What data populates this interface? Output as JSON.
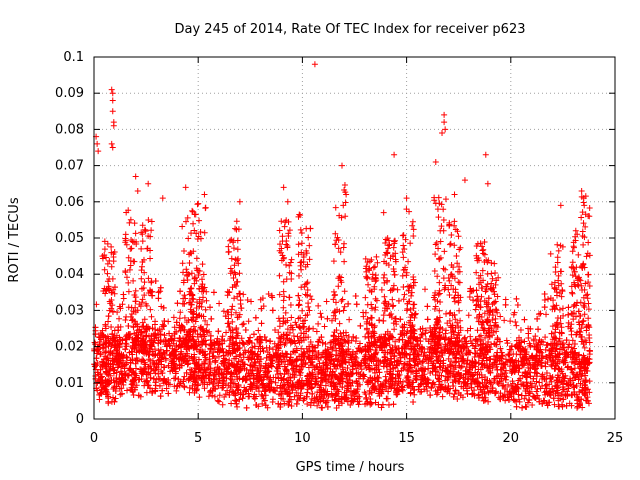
{
  "chart_data": {
    "type": "scatter",
    "title": "Day 245 of 2014, Rate Of TEC Index for receiver p623",
    "xlabel": "GPS time / hours",
    "ylabel": "ROTI / TECUs",
    "xlim": [
      0,
      25
    ],
    "ylim": [
      0,
      0.1
    ],
    "xticks": [
      0,
      5,
      10,
      15,
      20,
      25
    ],
    "yticks": [
      0,
      0.01,
      0.02,
      0.03,
      0.04,
      0.05,
      0.06,
      0.07,
      0.08,
      0.09,
      0.1
    ],
    "xtick_labels": [
      "0",
      "5",
      "10",
      "15",
      "20",
      "25"
    ],
    "ytick_labels": [
      "0",
      "0.01",
      "0.02",
      "0.03",
      "0.04",
      "0.05",
      "0.06",
      "0.07",
      "0.08",
      "0.09",
      "0.1"
    ],
    "grid": true,
    "marker": "+",
    "color": "#ff0000",
    "series": [
      {
        "name": "ROTI",
        "x_range": [
          0,
          23.8
        ],
        "baseline_profile": [
          [
            0,
            0.014
          ],
          [
            2,
            0.016
          ],
          [
            4.5,
            0.017
          ],
          [
            7,
            0.013
          ],
          [
            9,
            0.013
          ],
          [
            12,
            0.012
          ],
          [
            14,
            0.014
          ],
          [
            16,
            0.016
          ],
          [
            18,
            0.015
          ],
          [
            20,
            0.012
          ],
          [
            22,
            0.013
          ],
          [
            23.8,
            0.012
          ]
        ],
        "notable_points": [
          [
            0.1,
            0.078
          ],
          [
            0.15,
            0.076
          ],
          [
            0.2,
            0.074
          ],
          [
            0.85,
            0.091
          ],
          [
            0.9,
            0.09
          ],
          [
            0.9,
            0.088
          ],
          [
            0.9,
            0.085
          ],
          [
            0.95,
            0.082
          ],
          [
            0.95,
            0.081
          ],
          [
            0.85,
            0.076
          ],
          [
            0.9,
            0.075
          ],
          [
            10.6,
            0.098
          ],
          [
            11.9,
            0.07
          ],
          [
            14.4,
            0.073
          ],
          [
            16.4,
            0.071
          ],
          [
            16.8,
            0.084
          ],
          [
            16.8,
            0.082
          ],
          [
            16.85,
            0.08
          ],
          [
            16.7,
            0.079
          ],
          [
            18.8,
            0.073
          ],
          [
            18.9,
            0.065
          ],
          [
            17.8,
            0.066
          ],
          [
            17.3,
            0.062
          ],
          [
            2.0,
            0.067
          ],
          [
            2.1,
            0.063
          ],
          [
            2.6,
            0.065
          ],
          [
            4.4,
            0.064
          ],
          [
            5.3,
            0.062
          ],
          [
            9.1,
            0.064
          ],
          [
            9.3,
            0.06
          ],
          [
            23.4,
            0.063
          ],
          [
            23.5,
            0.061
          ],
          [
            22.4,
            0.059
          ],
          [
            15.0,
            0.061
          ],
          [
            13.9,
            0.057
          ],
          [
            7.0,
            0.06
          ],
          [
            3.3,
            0.061
          ]
        ],
        "burst_centers": [
          [
            0.7,
            0.05
          ],
          [
            1.8,
            0.058
          ],
          [
            2.5,
            0.055
          ],
          [
            4.5,
            0.058
          ],
          [
            5.1,
            0.06
          ],
          [
            6.7,
            0.055
          ],
          [
            9.2,
            0.055
          ],
          [
            10.1,
            0.057
          ],
          [
            11.8,
            0.065
          ],
          [
            13.3,
            0.045
          ],
          [
            14.2,
            0.05
          ],
          [
            15.1,
            0.058
          ],
          [
            16.6,
            0.062
          ],
          [
            17.3,
            0.055
          ],
          [
            18.6,
            0.05
          ],
          [
            19.1,
            0.045
          ],
          [
            22.2,
            0.05
          ],
          [
            23.2,
            0.052
          ],
          [
            23.6,
            0.062
          ]
        ]
      }
    ]
  }
}
